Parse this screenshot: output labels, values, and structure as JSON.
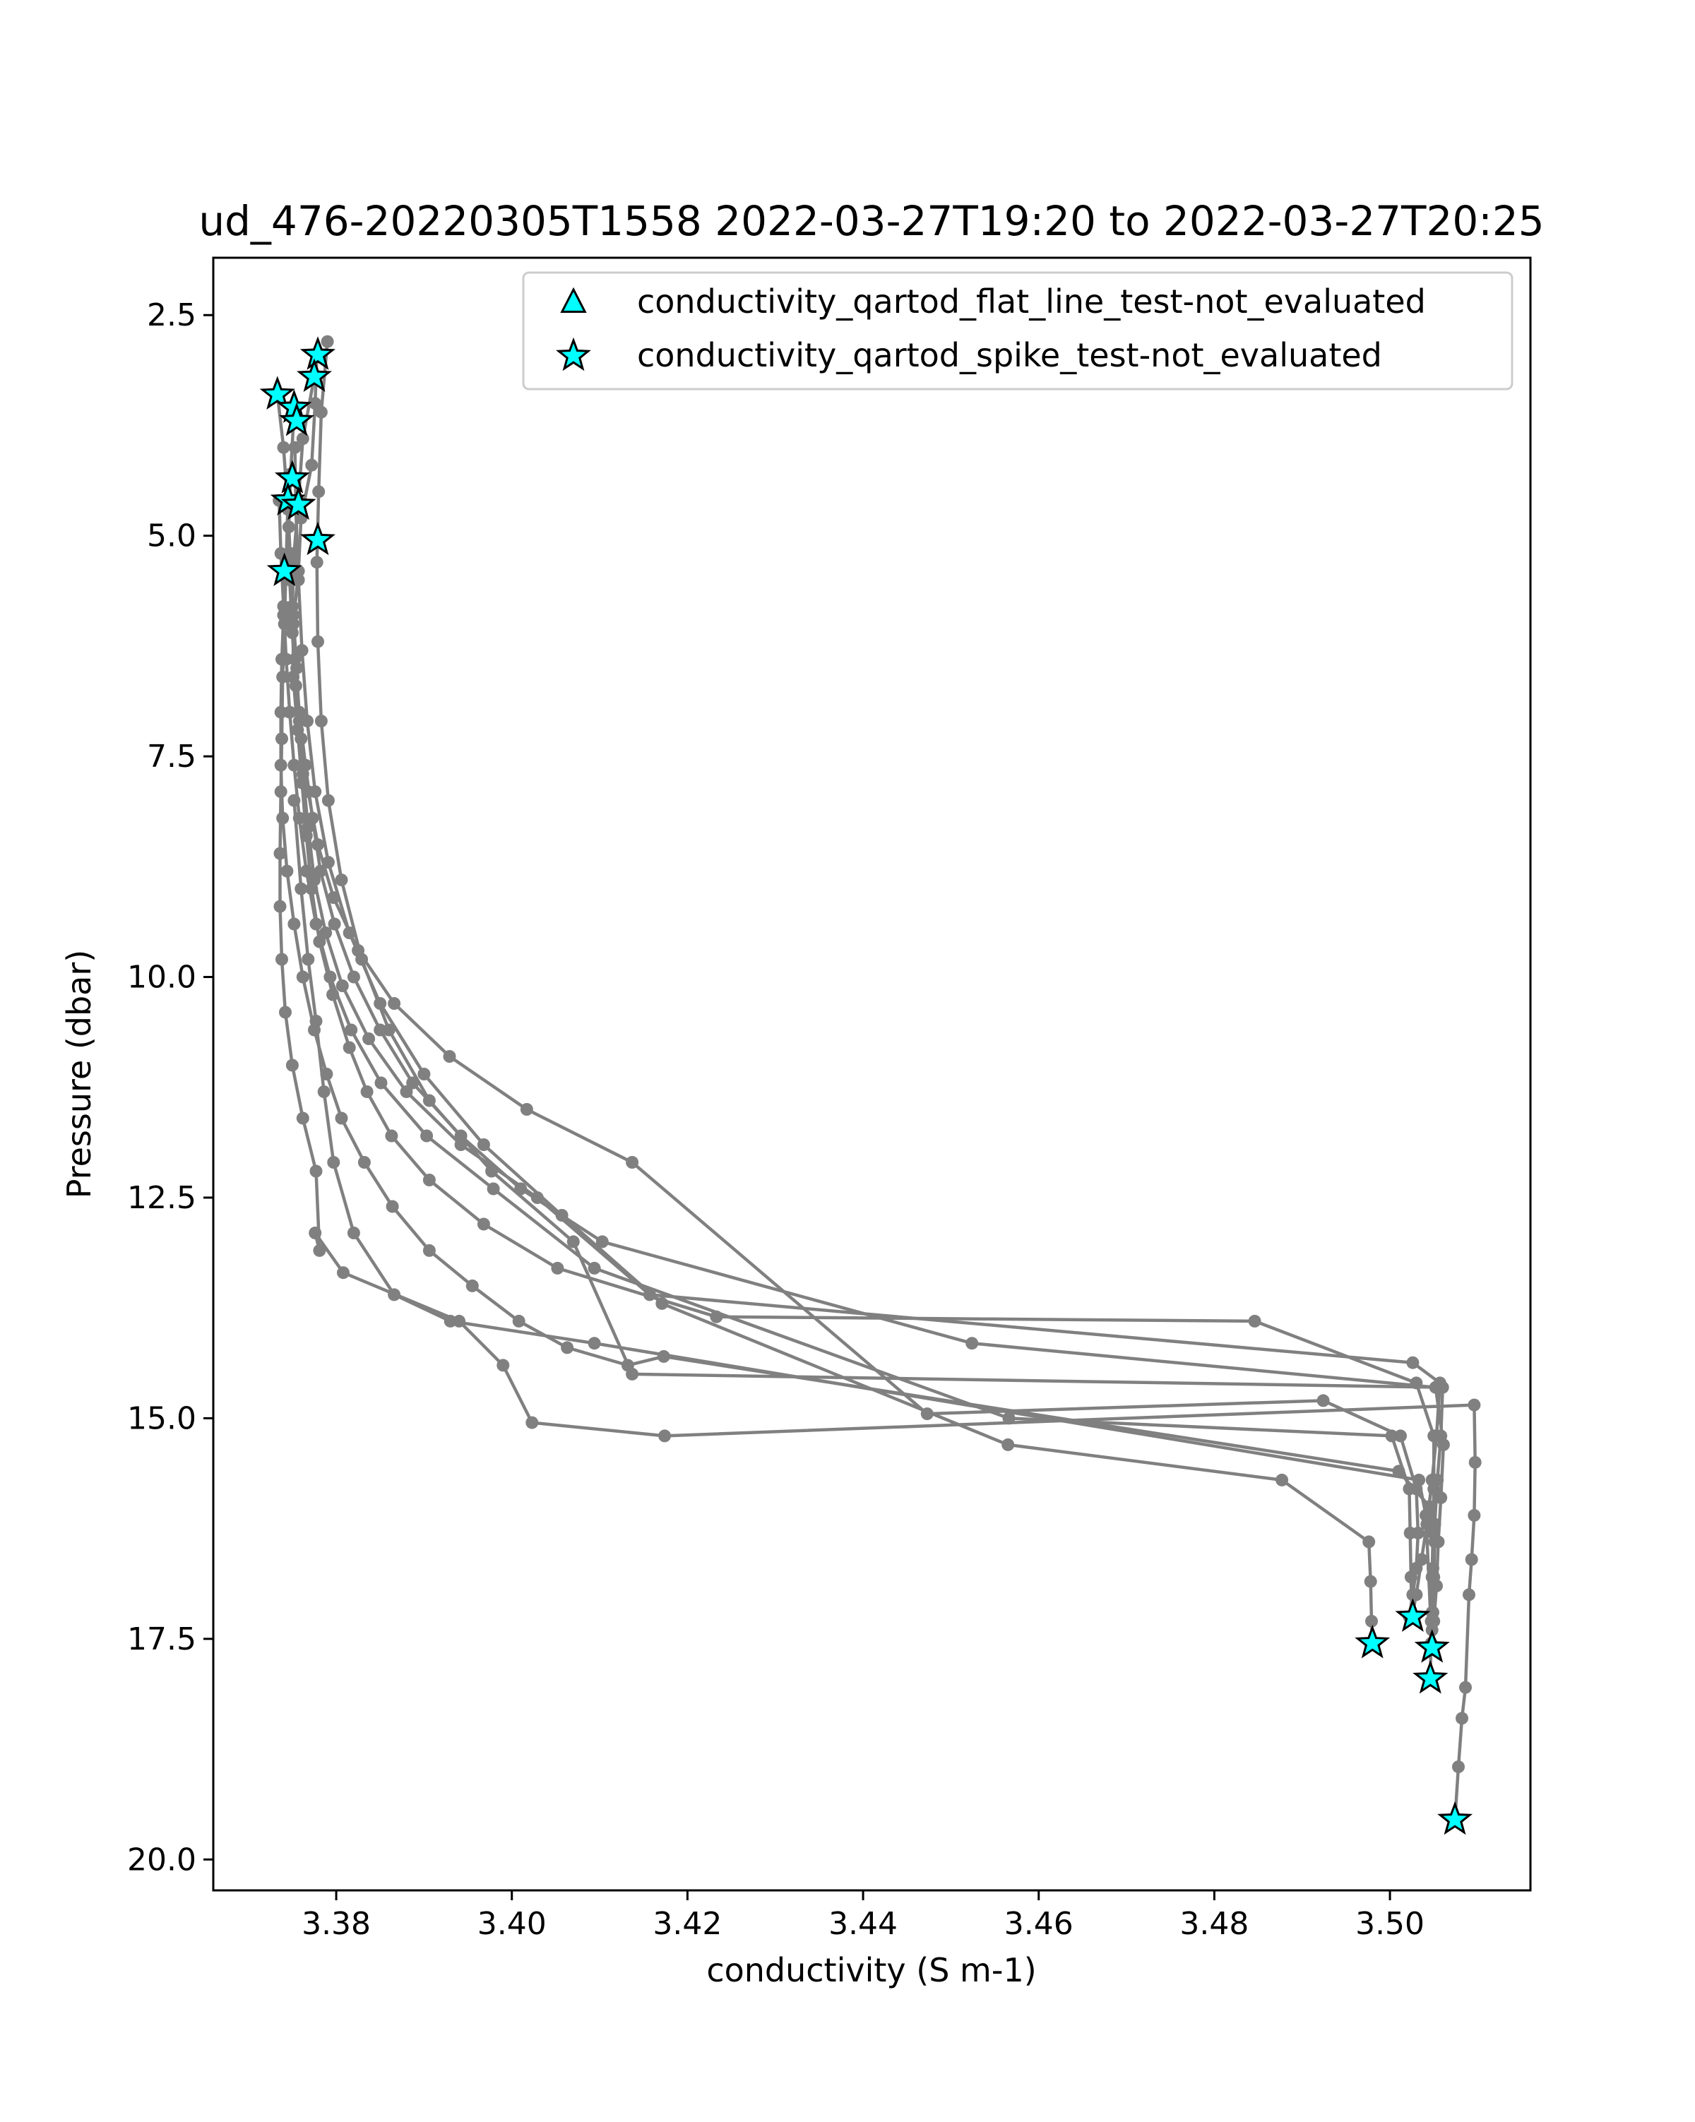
{
  "chart_data": {
    "type": "line",
    "title": "ud_476-20220305T1558 2022-03-27T19:20 to 2022-03-27T20:25",
    "xlabel": "conductivity (S m-1)",
    "ylabel": "Pressure (dbar)",
    "xlim": [
      3.366,
      3.516
    ],
    "ylim": [
      20.35,
      1.85
    ],
    "y_inverted": true,
    "grid": false,
    "legend_position": "top-right",
    "x_ticks": [
      3.38,
      3.4,
      3.42,
      3.44,
      3.46,
      3.48,
      3.5
    ],
    "x_tick_labels": [
      "3.38",
      "3.40",
      "3.42",
      "3.44",
      "3.46",
      "3.48",
      "3.50"
    ],
    "y_ticks": [
      2.5,
      5.0,
      7.5,
      10.0,
      12.5,
      15.0,
      17.5,
      20.0
    ],
    "y_tick_labels": [
      "2.5",
      "5.0",
      "7.5",
      "10.0",
      "12.5",
      "15.0",
      "17.5",
      "20.0"
    ],
    "colors": {
      "profile": "#808080",
      "flag_fill": "#00ffff",
      "flag_edge": "#000000"
    },
    "legend": [
      {
        "label": "conductivity_qartod_flat_line_test-not_evaluated",
        "marker": "triangle"
      },
      {
        "label": "conductivity_qartod_spike_test-not_evaluated",
        "marker": "star"
      }
    ],
    "profiles": [
      {
        "x": [
          3.3778,
          3.3776,
          3.3772,
          3.376,
          3.3757,
          3.3751,
          3.3751,
          3.3756,
          3.3761,
          3.3766,
          3.3772,
          3.3781,
          3.3796,
          3.3815,
          3.3835,
          3.3863,
          3.3906,
          3.3968,
          3.4052,
          3.4233,
          3.4846,
          3.503,
          3.505,
          3.505,
          3.5049,
          3.5048,
          3.5047,
          3.5046
        ],
        "y": [
          2.95,
          3.5,
          4.2,
          4.8,
          5.4,
          6.0,
          6.6,
          7.2,
          7.8,
          8.4,
          9.0,
          9.6,
          10.2,
          10.8,
          11.3,
          11.8,
          12.3,
          12.8,
          13.3,
          13.85,
          13.9,
          14.6,
          15.2,
          15.8,
          16.3,
          16.8,
          17.3,
          17.95
        ]
      },
      {
        "x": [
          3.3775,
          3.3762,
          3.3757,
          3.3752,
          3.375,
          3.3753,
          3.3758,
          3.3765,
          3.3773,
          3.3782,
          3.3798,
          3.382,
          3.385,
          3.3887,
          3.3942,
          3.401,
          3.4103,
          3.4524,
          3.5052,
          3.5061,
          3.5058,
          3.5055,
          3.5053,
          3.505,
          3.5048
        ],
        "y": [
          3.2,
          3.9,
          4.6,
          5.2,
          5.8,
          6.4,
          7.0,
          7.6,
          8.2,
          8.8,
          9.4,
          10.0,
          10.6,
          11.2,
          11.8,
          12.4,
          13.0,
          14.15,
          14.65,
          15.3,
          15.9,
          16.4,
          16.9,
          17.3,
          17.6
        ]
      },
      {
        "x": [
          3.3733,
          3.374,
          3.3745,
          3.3748,
          3.3751,
          3.3755,
          3.3758,
          3.3762,
          3.3768,
          3.3775,
          3.3788,
          3.3807,
          3.3837,
          3.388,
          3.3942,
          3.4029,
          3.4157,
          3.5026,
          3.5057,
          3.5053,
          3.5048,
          3.5042,
          3.5036,
          3.503,
          3.5025
        ],
        "y": [
          3.4,
          4.0,
          4.7,
          5.3,
          5.9,
          6.5,
          7.1,
          7.7,
          8.3,
          8.9,
          9.5,
          10.1,
          10.7,
          11.3,
          11.9,
          12.5,
          13.6,
          14.37,
          14.6,
          15.2,
          15.7,
          16.2,
          16.6,
          17.0,
          17.25
        ]
      },
      {
        "x": [
          3.3752,
          3.3748,
          3.3746,
          3.3747,
          3.375,
          3.3754,
          3.376,
          3.3768,
          3.3779,
          3.3797,
          3.3825,
          3.3866,
          3.3929,
          3.4017,
          3.4137,
          3.4473,
          3.4924,
          3.5012,
          3.503,
          3.5032,
          3.503,
          3.5026,
          3.5022
        ],
        "y": [
          3.6,
          4.3,
          4.9,
          5.5,
          6.1,
          6.7,
          7.3,
          7.9,
          8.5,
          9.1,
          9.7,
          10.3,
          10.9,
          11.5,
          12.1,
          14.95,
          14.8,
          15.2,
          15.8,
          16.3,
          16.7,
          17.0,
          17.25
        ]
      },
      {
        "x": [
          3.379,
          3.3783,
          3.378,
          3.3778,
          3.3779,
          3.3783,
          3.3791,
          3.3806,
          3.3829,
          3.386,
          3.3906,
          3.3977,
          3.407,
          3.4137,
          3.506,
          3.5058,
          3.5054,
          3.5051,
          3.5049,
          3.5048,
          3.5047
        ],
        "y": [
          2.8,
          3.6,
          4.5,
          5.3,
          6.2,
          7.1,
          8.0,
          8.9,
          9.8,
          10.6,
          11.4,
          12.2,
          13.0,
          14.5,
          14.65,
          15.2,
          15.7,
          16.2,
          16.7,
          17.2,
          17.55
        ]
      },
      {
        "x": [
          3.3735,
          3.3737,
          3.374,
          3.3743,
          3.3747,
          3.3752,
          3.3758,
          3.3766,
          3.3777,
          3.3793,
          3.3817,
          3.3851,
          3.3903,
          3.3979,
          3.4094,
          3.4566,
          3.5002,
          3.5022,
          3.5023,
          3.5024,
          3.5025
        ],
        "y": [
          4.6,
          5.2,
          5.8,
          6.4,
          7.0,
          7.6,
          8.2,
          8.8,
          9.4,
          10.0,
          10.6,
          11.2,
          11.8,
          12.4,
          13.3,
          15.0,
          15.2,
          15.8,
          16.3,
          16.8,
          17.25
        ]
      },
      {
        "x": [
          3.3741,
          3.374,
          3.3738,
          3.3737,
          3.3737,
          3.3739,
          3.3744,
          3.3752,
          3.3762,
          3.3775,
          3.3789,
          3.3806,
          3.3832,
          3.3864,
          3.3906,
          3.3955,
          3.4008,
          3.4063,
          3.4132,
          3.4173,
          3.501,
          3.5045,
          3.5051,
          3.505,
          3.5049,
          3.5048,
          3.5047
        ],
        "y": [
          5.4,
          5.9,
          6.4,
          7.0,
          7.6,
          8.2,
          8.8,
          9.4,
          10.0,
          10.6,
          11.1,
          11.6,
          12.1,
          12.6,
          13.1,
          13.5,
          13.9,
          14.2,
          14.4,
          14.3,
          15.6,
          16.0,
          16.4,
          16.8,
          17.2,
          17.4,
          17.6
        ]
      },
      {
        "x": [
          3.3745,
          3.3743,
          3.3741,
          3.3739,
          3.3738,
          3.3737,
          3.3736,
          3.3736,
          3.3738,
          3.3742,
          3.375,
          3.3762,
          3.3777,
          3.3781,
          3.3776,
          3.3808,
          3.394,
          3.399,
          3.4023,
          3.4174,
          3.5096,
          3.5097,
          3.5096,
          3.5093,
          3.509,
          3.5086,
          3.5082,
          3.5078,
          3.5074
        ],
        "y": [
          4.6,
          5.3,
          6.0,
          6.6,
          7.3,
          7.9,
          8.6,
          9.2,
          9.8,
          10.4,
          11.0,
          11.6,
          12.2,
          13.1,
          12.9,
          13.35,
          13.9,
          14.4,
          15.05,
          15.2,
          14.85,
          15.5,
          16.1,
          16.6,
          17.0,
          18.05,
          18.4,
          18.95,
          19.55
        ]
      },
      {
        "x": [
          3.3753,
          3.3754,
          3.3757,
          3.3761,
          3.3767,
          3.3776,
          3.3791,
          3.3815,
          3.385,
          3.39,
          3.3968,
          3.4057,
          3.4171,
          3.4565,
          3.4877,
          3.4976,
          3.4978,
          3.4979,
          3.498
        ],
        "y": [
          4.0,
          4.7,
          5.5,
          6.3,
          7.1,
          7.9,
          8.7,
          9.5,
          10.3,
          11.1,
          11.9,
          12.7,
          13.7,
          15.3,
          15.7,
          16.4,
          16.85,
          17.3,
          17.55
        ]
      },
      {
        "x": [
          3.3752,
          3.376,
          3.3768,
          3.3777,
          3.3786,
          3.3797,
          3.382,
          3.3866,
          3.393,
          3.4094,
          3.5033,
          3.5041,
          3.5048
        ],
        "y": [
          8.0,
          9.0,
          9.8,
          10.5,
          11.3,
          12.1,
          12.9,
          13.6,
          13.9,
          14.15,
          15.7,
          16.1,
          17.6
        ]
      }
    ],
    "flagged_points": {
      "series_name": "conductivity_qartod_spike_test-not_evaluated",
      "x": [
        3.3779,
        3.3775,
        3.3733,
        3.3752,
        3.3755,
        3.375,
        3.3745,
        3.3757,
        3.3779,
        3.3741,
        3.498,
        3.5026,
        3.5048,
        3.5046,
        3.5074
      ],
      "y": [
        2.95,
        3.2,
        3.4,
        3.55,
        3.7,
        4.35,
        4.6,
        4.65,
        5.05,
        5.4,
        17.55,
        17.25,
        17.6,
        17.95,
        19.55
      ]
    }
  }
}
